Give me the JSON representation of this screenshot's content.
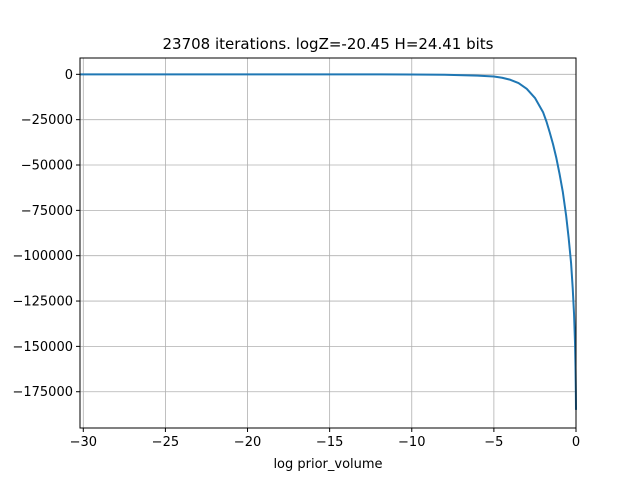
{
  "chart_data": {
    "type": "line",
    "title": "23708 iterations. logZ=-20.45 H=24.41 bits",
    "xlabel": "log prior_volume",
    "ylabel": "",
    "xlim": [
      -30.2,
      0
    ],
    "ylim": [
      -195000,
      9000
    ],
    "grid": true,
    "xticks": [
      -30,
      -25,
      -20,
      -15,
      -10,
      -5,
      0
    ],
    "xtick_labels": [
      "−30",
      "−25",
      "−20",
      "−15",
      "−10",
      "−5",
      "0"
    ],
    "yticks": [
      0,
      -25000,
      -50000,
      -75000,
      -100000,
      -125000,
      -150000,
      -175000
    ],
    "ytick_labels": [
      "0",
      "−25000",
      "−50000",
      "−75000",
      "−100000",
      "−125000",
      "−150000",
      "−175000"
    ],
    "series": [
      {
        "color": "#1f77b4",
        "x": [
          -30.2,
          -25,
          -20,
          -15,
          -10,
          -8,
          -6,
          -5,
          -4.5,
          -4,
          -3.5,
          -3,
          -2.5,
          -2,
          -1.8,
          -1.6,
          -1.4,
          -1.2,
          -1.0,
          -0.8,
          -0.6,
          -0.45,
          -0.3,
          -0.2,
          -0.12,
          -0.06,
          -0.03,
          -0.01,
          0
        ],
        "y": [
          0,
          0,
          0,
          0,
          -80,
          -250,
          -700,
          -1200,
          -1900,
          -3000,
          -4800,
          -8000,
          -13000,
          -21000,
          -26000,
          -32000,
          -38500,
          -46000,
          -55000,
          -65000,
          -78000,
          -90000,
          -104000,
          -118000,
          -132000,
          -148000,
          -162000,
          -175000,
          -185000
        ]
      }
    ]
  }
}
